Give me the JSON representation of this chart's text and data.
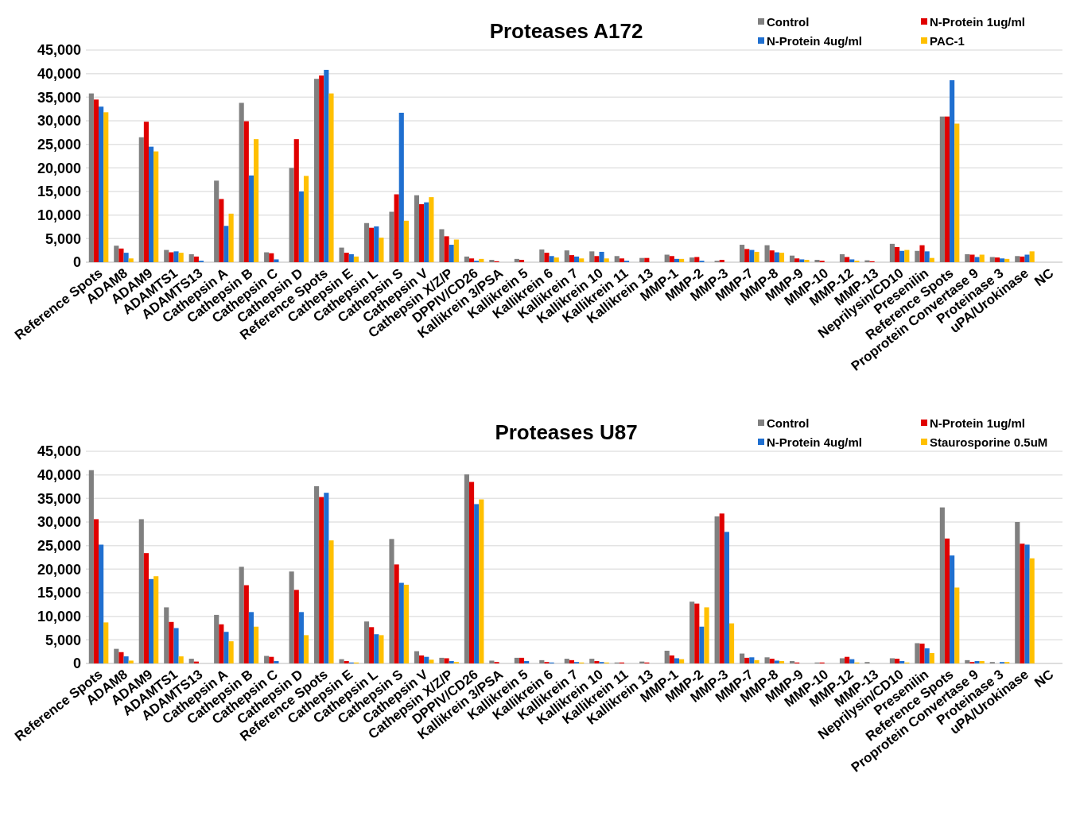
{
  "chart_data": [
    {
      "type": "bar",
      "title": "Proteases A172",
      "categories": [
        "Reference Spots",
        "ADAM8",
        "ADAM9",
        "ADAMTS1",
        "ADAMTS13",
        "Cathepsin A",
        "Cathepsin B",
        "Cathepsin C",
        "Cathepsin D",
        "Reference Spots",
        "Cathepsin E",
        "Cathepsin L",
        "Cathepsin S",
        "Cathepsin V",
        "Cathepsin X/Z/P",
        "DPPIV/CD26",
        "Kallikrein 3/PSA",
        "Kallikrein 5",
        "Kallikrein 6",
        "Kallikrein 7",
        "Kallikrein 10",
        "Kallikrein 11",
        "Kallikrein 13",
        "MMP-1",
        "MMP-2",
        "MMP-3",
        "MMP-7",
        "MMP-8",
        "MMP-9",
        "MMP-10",
        "MMP-12",
        "MMP-13",
        "Neprilysin/CD10",
        "Presenilin",
        "Reference Spots",
        "Proprotein Convertase 9",
        "Proteinase 3",
        "uPA/Urokinase",
        "NC"
      ],
      "series": [
        {
          "name": "Control",
          "color": "#808080",
          "values": [
            35800,
            3500,
            26500,
            2600,
            1700,
            17300,
            33800,
            2100,
            20000,
            38900,
            3100,
            8300,
            10700,
            14200,
            7000,
            1200,
            500,
            700,
            2700,
            2500,
            2300,
            1300,
            900,
            1600,
            1000,
            300,
            3700,
            3600,
            1400,
            500,
            1700,
            400,
            3900,
            2400,
            30900,
            1700,
            1100,
            1300,
            0
          ]
        },
        {
          "name": "N-Protein 1ug/ml",
          "color": "#e00000",
          "values": [
            34500,
            2900,
            29800,
            2100,
            1200,
            13400,
            29900,
            1900,
            26100,
            39600,
            2000,
            7300,
            14400,
            12300,
            5500,
            800,
            200,
            500,
            2000,
            1500,
            1300,
            800,
            900,
            1300,
            1100,
            500,
            2800,
            2500,
            800,
            300,
            1100,
            200,
            3200,
            3600,
            30900,
            1600,
            1000,
            1200,
            0
          ]
        },
        {
          "name": "N-Protein 4ug/ml",
          "color": "#1f6fd0",
          "values": [
            33000,
            2000,
            24500,
            2300,
            300,
            7700,
            18400,
            600,
            15000,
            40800,
            1700,
            7600,
            31700,
            12700,
            3700,
            300,
            0,
            0,
            1300,
            1200,
            2200,
            300,
            0,
            700,
            300,
            0,
            2600,
            2100,
            600,
            0,
            600,
            0,
            2400,
            2300,
            38600,
            1100,
            800,
            1600,
            0
          ]
        },
        {
          "name": "PAC-1",
          "color": "#ffc000",
          "values": [
            31800,
            800,
            23500,
            2000,
            0,
            10300,
            26100,
            0,
            18300,
            35800,
            1200,
            5200,
            8800,
            13800,
            4800,
            700,
            0,
            0,
            1000,
            800,
            800,
            0,
            0,
            700,
            0,
            0,
            2200,
            2000,
            500,
            0,
            300,
            0,
            2600,
            900,
            29400,
            1600,
            700,
            2300,
            0
          ]
        }
      ],
      "ylim": [
        0,
        45000
      ],
      "yticks": [
        {
          "value": 0,
          "label": "0"
        },
        {
          "value": 5000,
          "label": "5,000"
        },
        {
          "value": 10000,
          "label": "10,000"
        },
        {
          "value": 15000,
          "label": "15,000"
        },
        {
          "value": 20000,
          "label": "20,000"
        },
        {
          "value": 25000,
          "label": "25,000"
        },
        {
          "value": 30000,
          "label": "30,000"
        },
        {
          "value": 35000,
          "label": "35,000"
        },
        {
          "value": 40000,
          "label": "40,000"
        },
        {
          "value": 45000,
          "label": "45,000"
        }
      ],
      "grid": "y",
      "legend": "top right"
    },
    {
      "type": "bar",
      "title": "Proteases U87",
      "categories": [
        "Reference Spots",
        "ADAM8",
        "ADAM9",
        "ADAMTS1",
        "ADAMTS13",
        "Cathepsin A",
        "Cathepsin B",
        "Cathepsin C",
        "Cathepsin D",
        "Reference Spots",
        "Cathepsin E",
        "Cathepsin L",
        "Cathepsin S",
        "Cathepsin V",
        "Cathepsin X/Z/P",
        "DPPIV/CD26",
        "Kallikrein 3/PSA",
        "Kallikrein 5",
        "Kallikrein 6",
        "Kallikrein 7",
        "Kallikrein 10",
        "Kallikrein 11",
        "Kallikrein 13",
        "MMP-1",
        "MMP-2",
        "MMP-3",
        "MMP-7",
        "MMP-8",
        "MMP-9",
        "MMP-10",
        "MMP-12",
        "MMP-13",
        "Neprilysin/CD10",
        "Presenilin",
        "Reference Spots",
        "Proprotein Convertase 9",
        "Proteinase 3",
        "uPA/Urokinase",
        "NC"
      ],
      "series": [
        {
          "name": "Control",
          "color": "#808080",
          "values": [
            41000,
            3100,
            30600,
            11900,
            1000,
            10300,
            20500,
            1600,
            19500,
            37600,
            900,
            8900,
            26400,
            2600,
            1200,
            40100,
            600,
            1200,
            700,
            1000,
            1000,
            200,
            400,
            2700,
            13100,
            31200,
            2100,
            1300,
            500,
            200,
            1100,
            300,
            1100,
            4300,
            33100,
            700,
            300,
            30000,
            0
          ]
        },
        {
          "name": "N-Protein 1ug/ml",
          "color": "#e00000",
          "values": [
            30600,
            2400,
            23400,
            8800,
            400,
            8300,
            16600,
            1400,
            15600,
            35300,
            500,
            7700,
            21000,
            1700,
            1100,
            38500,
            300,
            1200,
            300,
            700,
            500,
            200,
            200,
            1700,
            12700,
            31800,
            1200,
            1000,
            200,
            200,
            1400,
            0,
            1000,
            4200,
            26500,
            300,
            0,
            25400,
            0
          ]
        },
        {
          "name": "N-Protein 4ug/ml",
          "color": "#1f6fd0",
          "values": [
            25200,
            1500,
            17900,
            7500,
            0,
            6700,
            10900,
            500,
            10900,
            36200,
            200,
            6200,
            17100,
            1400,
            500,
            33800,
            0,
            500,
            200,
            300,
            300,
            0,
            0,
            1100,
            7800,
            27900,
            1300,
            600,
            0,
            0,
            900,
            0,
            500,
            3200,
            22900,
            500,
            300,
            25200,
            0
          ]
        },
        {
          "name": "Staurosporine 0.5uM",
          "color": "#ffc000",
          "values": [
            8700,
            600,
            18500,
            1500,
            0,
            4700,
            7800,
            0,
            6000,
            26100,
            200,
            6000,
            16700,
            800,
            300,
            34800,
            0,
            0,
            0,
            200,
            200,
            0,
            0,
            900,
            11900,
            8500,
            700,
            500,
            0,
            0,
            200,
            0,
            200,
            2200,
            16100,
            500,
            300,
            22300,
            0
          ]
        }
      ],
      "ylim": [
        0,
        45000
      ],
      "yticks": [
        {
          "value": 0,
          "label": "0"
        },
        {
          "value": 5000,
          "label": "5,000"
        },
        {
          "value": 10000,
          "label": "10,000"
        },
        {
          "value": 15000,
          "label": "15,000"
        },
        {
          "value": 20000,
          "label": "20,000"
        },
        {
          "value": 25000,
          "label": "25,000"
        },
        {
          "value": 30000,
          "label": "30,000"
        },
        {
          "value": 35000,
          "label": "35,000"
        },
        {
          "value": 40000,
          "label": "40,000"
        },
        {
          "value": 45000,
          "label": "45,000"
        }
      ],
      "grid": "y",
      "legend": "top right"
    }
  ]
}
